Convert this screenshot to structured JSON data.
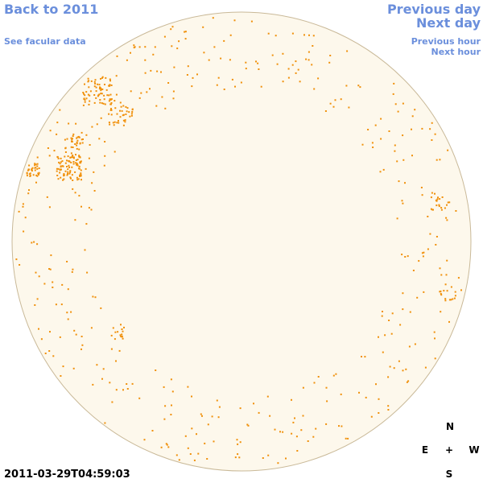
{
  "header": {
    "back_link": "Back to 2011",
    "facular_link": "See facular data",
    "previous_day": "Previous day",
    "next_day": "Next day",
    "previous_hour": "Previous hour",
    "next_hour": "Next hour"
  },
  "timestamp": "2011-03-29T04:59:03",
  "compass": {
    "north": "N",
    "east": "E",
    "center": "+",
    "west": "W",
    "south": "S"
  }
}
